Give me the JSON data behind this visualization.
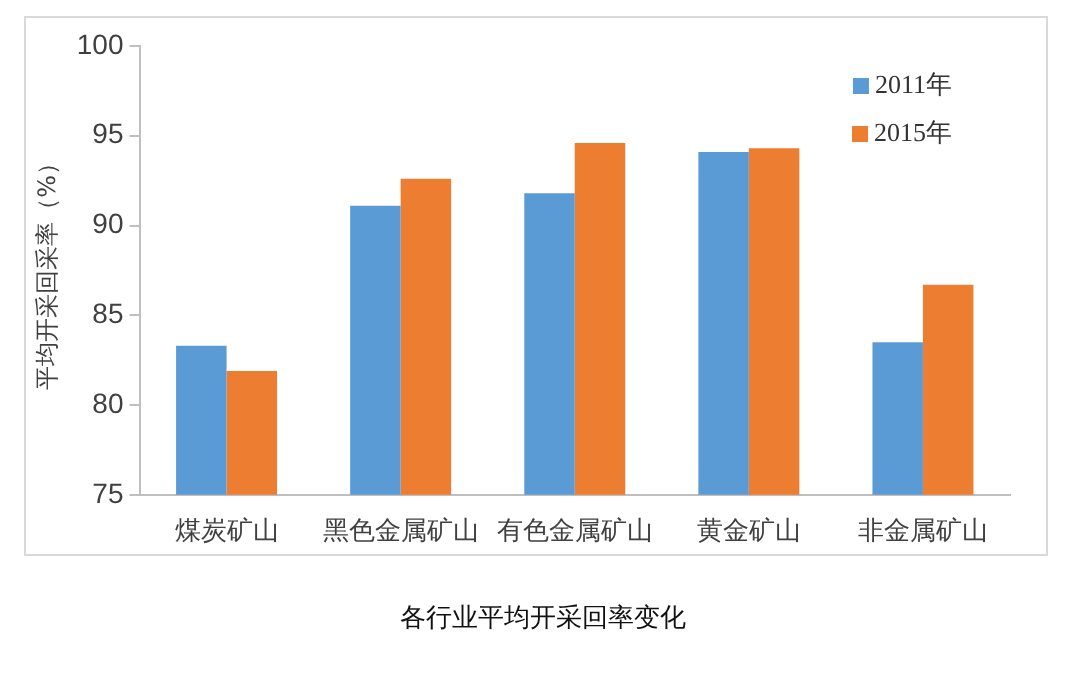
{
  "chart_data": {
    "type": "bar",
    "title": "各行业平均开采回率变化",
    "ylabel": "平均开采回采率（%）",
    "categories": [
      "煤炭矿山",
      "黑色金属矿山",
      "有色金属矿山",
      "黄金矿山",
      "非金属矿山"
    ],
    "series": [
      {
        "name": "2011年",
        "color": "#5b9bd5",
        "values": [
          83.3,
          91.1,
          91.8,
          94.1,
          83.5
        ]
      },
      {
        "name": "2015年",
        "color": "#ed7d31",
        "values": [
          81.9,
          92.6,
          94.6,
          94.3,
          86.7
        ]
      }
    ],
    "ylim": [
      75,
      100
    ],
    "yticks": [
      75,
      80,
      85,
      90,
      95,
      100
    ],
    "grid": false,
    "legend": "top right"
  }
}
